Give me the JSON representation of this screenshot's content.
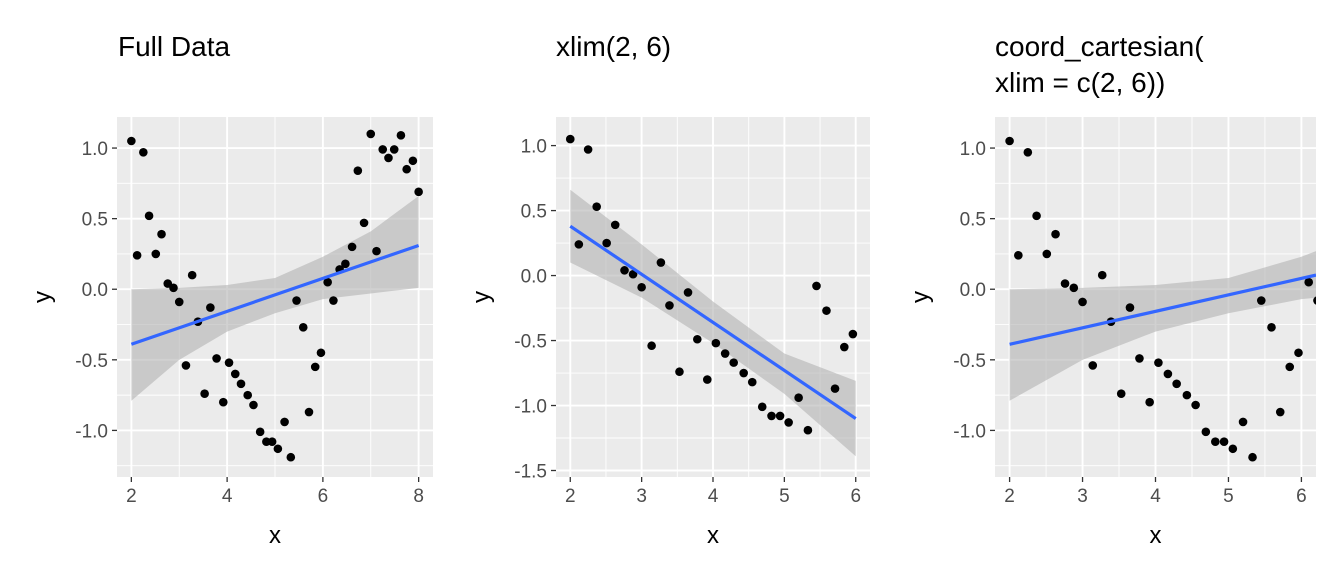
{
  "colors": {
    "panel_background": "#ebebeb",
    "gridline": "#ffffff",
    "point": "#000000",
    "smooth_line": "#3366ff",
    "confidence_band": "#b3b3b3",
    "tick_text": "#4d4d4d"
  },
  "chart_data": [
    {
      "type": "scatter",
      "title_lines": [
        "Full Data"
      ],
      "xlabel": "x",
      "ylabel": "y",
      "xlim": [
        1.7,
        8.3
      ],
      "ylim": [
        -1.33,
        1.22
      ],
      "x_ticks": [
        2,
        4,
        6,
        8
      ],
      "x_tick_labels": [
        "2",
        "4",
        "6",
        "8"
      ],
      "y_ticks": [
        -1.0,
        -0.5,
        0.0,
        0.5,
        1.0
      ],
      "y_tick_labels": [
        "-1.0",
        "-0.5",
        "0.0",
        "0.5",
        "1.0"
      ],
      "grid": true,
      "clip_to_panel": false,
      "points": [
        [
          2.0,
          1.05
        ],
        [
          2.12,
          0.24
        ],
        [
          2.25,
          0.97
        ],
        [
          2.37,
          0.52
        ],
        [
          2.51,
          0.25
        ],
        [
          2.63,
          0.39
        ],
        [
          2.76,
          0.04
        ],
        [
          2.88,
          0.01
        ],
        [
          3.0,
          -0.09
        ],
        [
          3.14,
          -0.54
        ],
        [
          3.27,
          0.1
        ],
        [
          3.39,
          -0.23
        ],
        [
          3.53,
          -0.74
        ],
        [
          3.65,
          -0.13
        ],
        [
          3.78,
          -0.49
        ],
        [
          3.92,
          -0.8
        ],
        [
          4.04,
          -0.52
        ],
        [
          4.17,
          -0.6
        ],
        [
          4.29,
          -0.67
        ],
        [
          4.43,
          -0.75
        ],
        [
          4.55,
          -0.82
        ],
        [
          4.69,
          -1.01
        ],
        [
          4.82,
          -1.08
        ],
        [
          4.94,
          -1.08
        ],
        [
          5.06,
          -1.13
        ],
        [
          5.2,
          -0.94
        ],
        [
          5.33,
          -1.19
        ],
        [
          5.45,
          -0.08
        ],
        [
          5.59,
          -0.27
        ],
        [
          5.71,
          -0.87
        ],
        [
          5.84,
          -0.55
        ],
        [
          5.96,
          -0.45
        ],
        [
          6.1,
          0.05
        ],
        [
          6.22,
          -0.08
        ],
        [
          6.35,
          0.14
        ],
        [
          6.47,
          0.18
        ],
        [
          6.61,
          0.3
        ],
        [
          6.73,
          0.84
        ],
        [
          6.86,
          0.47
        ],
        [
          7.0,
          1.1
        ],
        [
          7.12,
          0.27
        ],
        [
          7.25,
          0.99
        ],
        [
          7.37,
          0.93
        ],
        [
          7.49,
          0.99
        ],
        [
          7.63,
          1.09
        ],
        [
          7.75,
          0.85
        ],
        [
          7.88,
          0.91
        ],
        [
          8.0,
          0.69
        ]
      ],
      "fit_line": [
        [
          2.0,
          -0.39
        ],
        [
          8.0,
          0.31
        ]
      ],
      "confidence_band": {
        "x": [
          2.0,
          3.0,
          4.0,
          5.0,
          6.0,
          7.0,
          8.0
        ],
        "lower": [
          -0.79,
          -0.5,
          -0.3,
          -0.17,
          -0.07,
          -0.03,
          0.01
        ],
        "upper": [
          0.0,
          0.01,
          0.03,
          0.08,
          0.23,
          0.41,
          0.66
        ]
      }
    },
    {
      "type": "scatter",
      "title_lines": [
        "xlim(2, 6)"
      ],
      "xlabel": "x",
      "ylabel": "y",
      "xlim": [
        1.8,
        6.2
      ],
      "ylim": [
        -1.55,
        1.22
      ],
      "x_ticks": [
        2,
        3,
        4,
        5,
        6
      ],
      "x_tick_labels": [
        "2",
        "3",
        "4",
        "5",
        "6"
      ],
      "y_ticks": [
        -1.5,
        -1.0,
        -0.5,
        0.0,
        0.5,
        1.0
      ],
      "y_tick_labels": [
        "-1.5",
        "-1.0",
        "-0.5",
        "0.0",
        "0.5",
        "1.0"
      ],
      "grid": true,
      "clip_to_panel": false,
      "points": [
        [
          2.0,
          1.05
        ],
        [
          2.12,
          0.24
        ],
        [
          2.25,
          0.97
        ],
        [
          2.37,
          0.53
        ],
        [
          2.51,
          0.25
        ],
        [
          2.63,
          0.39
        ],
        [
          2.76,
          0.04
        ],
        [
          2.88,
          0.01
        ],
        [
          3.0,
          -0.09
        ],
        [
          3.14,
          -0.54
        ],
        [
          3.27,
          0.1
        ],
        [
          3.39,
          -0.23
        ],
        [
          3.53,
          -0.74
        ],
        [
          3.65,
          -0.13
        ],
        [
          3.78,
          -0.49
        ],
        [
          3.92,
          -0.8
        ],
        [
          4.04,
          -0.52
        ],
        [
          4.17,
          -0.6
        ],
        [
          4.29,
          -0.67
        ],
        [
          4.43,
          -0.75
        ],
        [
          4.55,
          -0.82
        ],
        [
          4.69,
          -1.01
        ],
        [
          4.82,
          -1.08
        ],
        [
          4.94,
          -1.08
        ],
        [
          5.06,
          -1.13
        ],
        [
          5.2,
          -0.94
        ],
        [
          5.33,
          -1.19
        ],
        [
          5.45,
          -0.08
        ],
        [
          5.59,
          -0.27
        ],
        [
          5.71,
          -0.87
        ],
        [
          5.84,
          -0.55
        ],
        [
          5.96,
          -0.45
        ]
      ],
      "fit_line": [
        [
          2.0,
          0.38
        ],
        [
          6.0,
          -1.1
        ]
      ],
      "confidence_band": {
        "x": [
          2.0,
          3.0,
          4.0,
          5.0,
          6.0
        ],
        "lower": [
          0.1,
          -0.17,
          -0.52,
          -0.91,
          -1.39
        ],
        "upper": [
          0.66,
          0.24,
          -0.2,
          -0.6,
          -0.81
        ]
      }
    },
    {
      "type": "scatter",
      "title_lines": [
        "coord_cartesian(",
        "xlim = c(2, 6))"
      ],
      "xlabel": "x",
      "ylabel": "y",
      "xlim": [
        1.8,
        6.2
      ],
      "ylim": [
        -1.33,
        1.22
      ],
      "x_ticks": [
        2,
        3,
        4,
        5,
        6
      ],
      "x_tick_labels": [
        "2",
        "3",
        "4",
        "5",
        "6"
      ],
      "y_ticks": [
        -1.0,
        -0.5,
        0.0,
        0.5,
        1.0
      ],
      "y_tick_labels": [
        "-1.0",
        "-0.5",
        "0.0",
        "0.5",
        "1.0"
      ],
      "grid": true,
      "clip_to_panel": true,
      "points": [
        [
          2.0,
          1.05
        ],
        [
          2.12,
          0.24
        ],
        [
          2.25,
          0.97
        ],
        [
          2.37,
          0.52
        ],
        [
          2.51,
          0.25
        ],
        [
          2.63,
          0.39
        ],
        [
          2.76,
          0.04
        ],
        [
          2.88,
          0.01
        ],
        [
          3.0,
          -0.09
        ],
        [
          3.14,
          -0.54
        ],
        [
          3.27,
          0.1
        ],
        [
          3.39,
          -0.23
        ],
        [
          3.53,
          -0.74
        ],
        [
          3.65,
          -0.13
        ],
        [
          3.78,
          -0.49
        ],
        [
          3.92,
          -0.8
        ],
        [
          4.04,
          -0.52
        ],
        [
          4.17,
          -0.6
        ],
        [
          4.29,
          -0.67
        ],
        [
          4.43,
          -0.75
        ],
        [
          4.55,
          -0.82
        ],
        [
          4.69,
          -1.01
        ],
        [
          4.82,
          -1.08
        ],
        [
          4.94,
          -1.08
        ],
        [
          5.06,
          -1.13
        ],
        [
          5.2,
          -0.94
        ],
        [
          5.33,
          -1.19
        ],
        [
          5.45,
          -0.08
        ],
        [
          5.59,
          -0.27
        ],
        [
          5.71,
          -0.87
        ],
        [
          5.84,
          -0.55
        ],
        [
          5.96,
          -0.45
        ],
        [
          6.1,
          0.05
        ],
        [
          6.22,
          -0.08
        ]
      ],
      "fit_line": [
        [
          2.0,
          -0.39
        ],
        [
          6.2,
          0.1
        ]
      ],
      "confidence_band": {
        "x": [
          2.0,
          3.0,
          4.0,
          5.0,
          6.0,
          6.2
        ],
        "lower": [
          -0.79,
          -0.5,
          -0.3,
          -0.17,
          -0.07,
          -0.06
        ],
        "upper": [
          0.0,
          0.01,
          0.03,
          0.08,
          0.23,
          0.27
        ]
      }
    }
  ]
}
